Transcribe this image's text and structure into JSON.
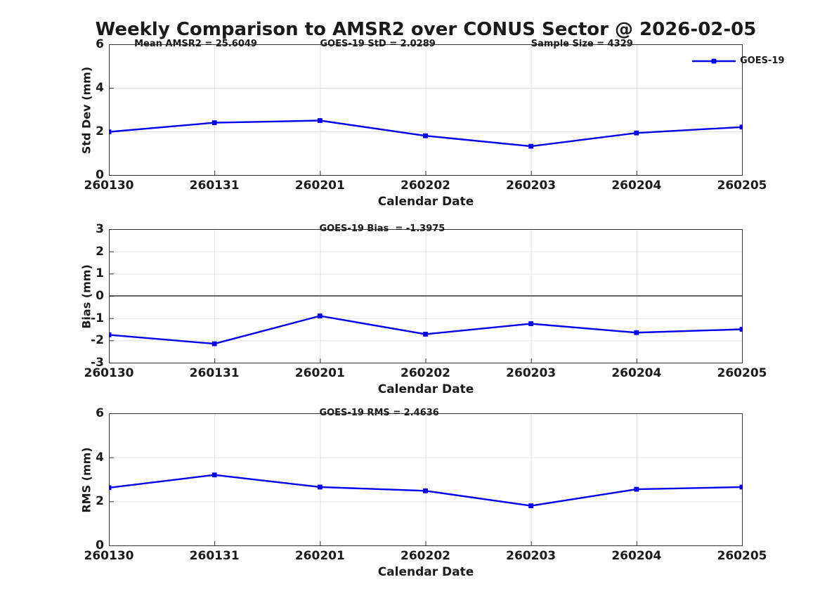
{
  "title": "Weekly Comparison to AMSR2 over CONUS Sector @ 2026-02-05",
  "legend": {
    "label": "GOES-19",
    "marker": "square-icon"
  },
  "colors": {
    "line": "#0000ee",
    "marker": "#0000ee",
    "grid": "#e2e2e2",
    "axis": "#333333",
    "zero_line": "#4d4d4d",
    "text": "#1a1a1a",
    "background": "#ffffff"
  },
  "chart_data": [
    {
      "type": "line",
      "name": "std-dev",
      "ylabel": "Std Dev (mm)",
      "xlabel": "Calendar Date",
      "categories": [
        "260130",
        "260131",
        "260201",
        "260202",
        "260203",
        "260204",
        "260205"
      ],
      "series": [
        {
          "name": "GOES-19",
          "values": [
            1.98,
            2.4,
            2.5,
            1.8,
            1.32,
            1.93,
            2.2
          ]
        }
      ],
      "ylim": [
        0,
        6
      ],
      "yticks": [
        0,
        2,
        4,
        6
      ],
      "grid": true,
      "zero_line": false,
      "legend_position": "top-right",
      "annotations": [
        "Mean AMSR2 = 25.6049",
        "GOES-19 StD = 2.0289",
        "Sample Size = 4329"
      ]
    },
    {
      "type": "line",
      "name": "bias",
      "ylabel": "Bias (mm)",
      "xlabel": "Calendar Date",
      "categories": [
        "260130",
        "260131",
        "260201",
        "260202",
        "260203",
        "260204",
        "260205"
      ],
      "series": [
        {
          "name": "GOES-19",
          "values": [
            -1.75,
            -2.15,
            -0.9,
            -1.72,
            -1.25,
            -1.65,
            -1.5
          ]
        }
      ],
      "ylim": [
        -3,
        3
      ],
      "yticks": [
        -3,
        -2,
        -1,
        0,
        1,
        2,
        3
      ],
      "grid": true,
      "zero_line": true,
      "legend_position": "none",
      "annotations": [
        "GOES-19 Bias  = -1.3975"
      ]
    },
    {
      "type": "line",
      "name": "rms",
      "ylabel": "RMS (mm)",
      "xlabel": "Calendar Date",
      "categories": [
        "260130",
        "260131",
        "260201",
        "260202",
        "260203",
        "260204",
        "260205"
      ],
      "series": [
        {
          "name": "GOES-19",
          "values": [
            2.62,
            3.2,
            2.65,
            2.48,
            1.8,
            2.55,
            2.65
          ]
        }
      ],
      "ylim": [
        0,
        6
      ],
      "yticks": [
        0,
        2,
        4,
        6
      ],
      "grid": true,
      "zero_line": false,
      "legend_position": "none",
      "annotations": [
        "GOES-19 RMS = 2.4636"
      ]
    }
  ]
}
